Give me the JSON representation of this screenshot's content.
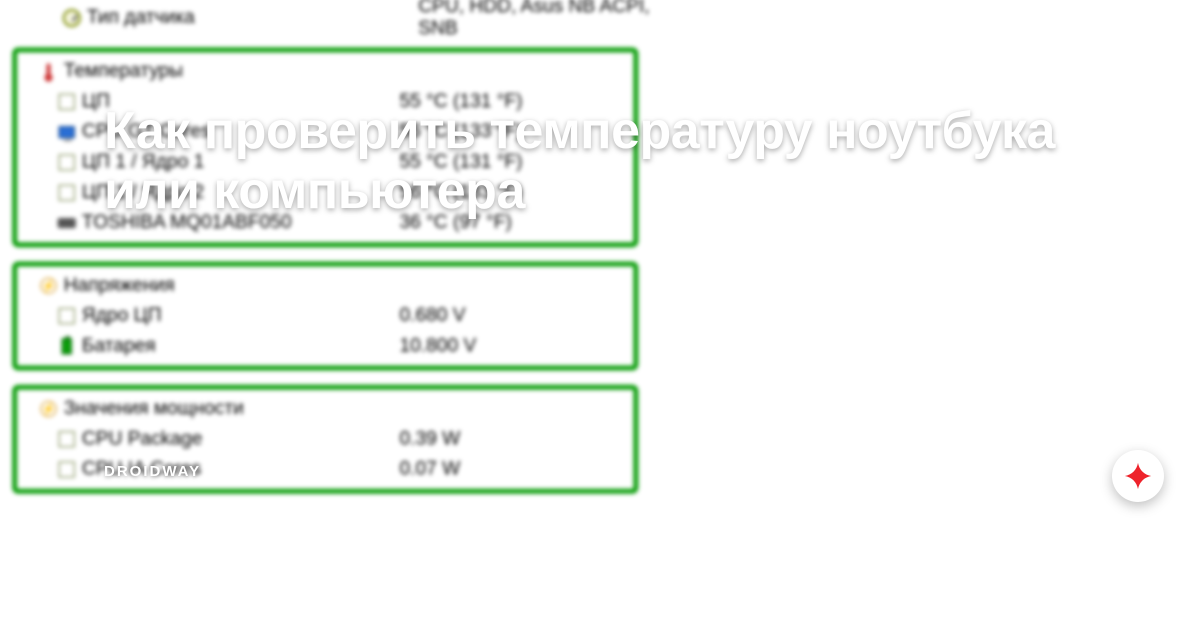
{
  "overlay": {
    "title": "Как проверить температуру ноутбука или компьютера",
    "brand": "DROIDWAY"
  },
  "sensor_type": {
    "label": "Тип датчика",
    "value": "CPU, HDD, Asus NB ACPI, SNB"
  },
  "groups": {
    "temperatures": {
      "header": "Температуры",
      "items": [
        {
          "icon": "chip",
          "label": "ЦП",
          "value": "55 °C  (131 °F)"
        },
        {
          "icon": "monitor",
          "label": "CPU GT Cores",
          "value": "56 °C  (133 °F)"
        },
        {
          "icon": "chip",
          "label": "ЦП 1 / Ядро 1",
          "value": "55 °C  (131 °F)"
        },
        {
          "icon": "chip",
          "label": "ЦП 1 / Ядро 2",
          "value": "56 °C  (133 °F)"
        },
        {
          "icon": "hdd",
          "label": "TOSHIBA MQ01ABF050",
          "value": "36 °C  (97 °F)"
        }
      ]
    },
    "voltages": {
      "header": "Напряжения",
      "items": [
        {
          "icon": "chip",
          "label": "Ядро ЦП",
          "value": "0.680 V"
        },
        {
          "icon": "battery",
          "label": "Батарея",
          "value": "10.800 V"
        }
      ]
    },
    "power": {
      "header": "Значения мощности",
      "items": [
        {
          "icon": "chip",
          "label": "CPU Package",
          "value": "0.39 W"
        },
        {
          "icon": "chip",
          "label": "CPU IA Cores",
          "value": "0.07 W"
        }
      ]
    }
  },
  "colors": {
    "group_border": "#0b9e0b",
    "zen_red": "#ee232b"
  }
}
